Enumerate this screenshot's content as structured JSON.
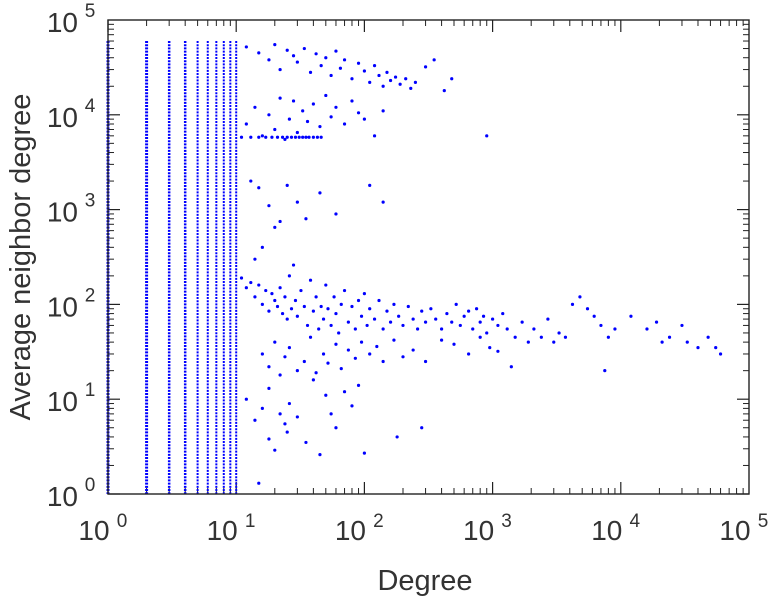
{
  "chart_data": {
    "type": "scatter",
    "title": "",
    "xlabel": "Degree",
    "ylabel": "Average neighbor degree",
    "xscale": "log",
    "yscale": "log",
    "xlim": [
      1,
      100000
    ],
    "ylim": [
      1,
      100000
    ],
    "grid": false,
    "legend": "none",
    "marker_color": "#0000ff",
    "x_ticks": [
      {
        "base": "10",
        "exp": "0"
      },
      {
        "base": "10",
        "exp": "1"
      },
      {
        "base": "10",
        "exp": "2"
      },
      {
        "base": "10",
        "exp": "3"
      },
      {
        "base": "10",
        "exp": "4"
      },
      {
        "base": "10",
        "exp": "5"
      }
    ],
    "y_ticks": [
      {
        "base": "10",
        "exp": "0"
      },
      {
        "base": "10",
        "exp": "1"
      },
      {
        "base": "10",
        "exp": "2"
      },
      {
        "base": "10",
        "exp": "3"
      },
      {
        "base": "10",
        "exp": "4"
      },
      {
        "base": "10",
        "exp": "5"
      }
    ],
    "columns_x": [
      1,
      2,
      3,
      4,
      5,
      6,
      7,
      8,
      9,
      10
    ],
    "column_ymin": 1,
    "column_ymax": 60000,
    "points": [
      [
        12,
        52000
      ],
      [
        15,
        45000
      ],
      [
        18,
        38000
      ],
      [
        20,
        55000
      ],
      [
        22,
        30000
      ],
      [
        25,
        48000
      ],
      [
        28,
        42000
      ],
      [
        30,
        36000
      ],
      [
        34,
        50000
      ],
      [
        38,
        28000
      ],
      [
        42,
        44000
      ],
      [
        46,
        33000
      ],
      [
        50,
        40000
      ],
      [
        55,
        26000
      ],
      [
        60,
        47000
      ],
      [
        65,
        31000
      ],
      [
        70,
        38000
      ],
      [
        80,
        24000
      ],
      [
        90,
        35000
      ],
      [
        100,
        29000
      ],
      [
        110,
        22000
      ],
      [
        120,
        33000
      ],
      [
        130,
        26000
      ],
      [
        140,
        20000
      ],
      [
        150,
        28000
      ],
      [
        160,
        23000
      ],
      [
        175,
        25000
      ],
      [
        190,
        21000
      ],
      [
        210,
        24000
      ],
      [
        230,
        19000
      ],
      [
        250,
        22000
      ],
      [
        300,
        32000
      ],
      [
        350,
        38000
      ],
      [
        420,
        18000
      ],
      [
        480,
        24000
      ],
      [
        12,
        8000
      ],
      [
        14,
        12000
      ],
      [
        16,
        6000
      ],
      [
        18,
        10000
      ],
      [
        20,
        7000
      ],
      [
        22,
        15000
      ],
      [
        24,
        5500
      ],
      [
        26,
        9000
      ],
      [
        28,
        14000
      ],
      [
        30,
        6500
      ],
      [
        33,
        11000
      ],
      [
        36,
        8500
      ],
      [
        40,
        13000
      ],
      [
        45,
        7500
      ],
      [
        50,
        16000
      ],
      [
        55,
        9500
      ],
      [
        60,
        12000
      ],
      [
        70,
        8000
      ],
      [
        80,
        14000
      ],
      [
        90,
        10500
      ],
      [
        100,
        9000
      ],
      [
        120,
        6000
      ],
      [
        140,
        11000
      ],
      [
        900,
        6000
      ],
      [
        11,
        5800
      ],
      [
        13,
        5800
      ],
      [
        15,
        5800
      ],
      [
        17,
        5800
      ],
      [
        19,
        5800
      ],
      [
        21,
        5800
      ],
      [
        23,
        5800
      ],
      [
        25,
        5800
      ],
      [
        27,
        5800
      ],
      [
        29,
        5800
      ],
      [
        31,
        5800
      ],
      [
        33,
        5800
      ],
      [
        35,
        5800
      ],
      [
        37,
        5800
      ],
      [
        40,
        5800
      ],
      [
        43,
        5800
      ],
      [
        46,
        5800
      ],
      [
        13,
        2000
      ],
      [
        15,
        1700
      ],
      [
        18,
        1100
      ],
      [
        22,
        750
      ],
      [
        25,
        1800
      ],
      [
        30,
        1200
      ],
      [
        35,
        800
      ],
      [
        45,
        1500
      ],
      [
        60,
        900
      ],
      [
        110,
        1800
      ],
      [
        140,
        1200
      ],
      [
        16,
        400
      ],
      [
        20,
        650
      ],
      [
        14,
        300
      ],
      [
        11,
        190
      ],
      [
        12,
        150
      ],
      [
        13,
        170
      ],
      [
        14,
        120
      ],
      [
        15,
        160
      ],
      [
        16,
        100
      ],
      [
        17,
        140
      ],
      [
        18,
        85
      ],
      [
        19,
        130
      ],
      [
        20,
        110
      ],
      [
        21,
        95
      ],
      [
        22,
        150
      ],
      [
        23,
        80
      ],
      [
        24,
        120
      ],
      [
        25,
        70
      ],
      [
        26,
        200
      ],
      [
        27,
        90
      ],
      [
        28,
        260
      ],
      [
        29,
        110
      ],
      [
        30,
        75
      ],
      [
        32,
        140
      ],
      [
        34,
        95
      ],
      [
        36,
        60
      ],
      [
        38,
        180
      ],
      [
        40,
        85
      ],
      [
        42,
        120
      ],
      [
        44,
        55
      ],
      [
        46,
        95
      ],
      [
        48,
        70
      ],
      [
        50,
        160
      ],
      [
        52,
        90
      ],
      [
        55,
        60
      ],
      [
        58,
        120
      ],
      [
        60,
        80
      ],
      [
        63,
        50
      ],
      [
        66,
        100
      ],
      [
        70,
        140
      ],
      [
        75,
        65
      ],
      [
        80,
        95
      ],
      [
        85,
        55
      ],
      [
        90,
        110
      ],
      [
        95,
        75
      ],
      [
        100,
        130
      ],
      [
        105,
        60
      ],
      [
        110,
        90
      ],
      [
        120,
        70
      ],
      [
        130,
        110
      ],
      [
        140,
        55
      ],
      [
        150,
        85
      ],
      [
        160,
        65
      ],
      [
        170,
        100
      ],
      [
        185,
        75
      ],
      [
        200,
        60
      ],
      [
        220,
        95
      ],
      [
        240,
        70
      ],
      [
        260,
        55
      ],
      [
        280,
        85
      ],
      [
        300,
        65
      ],
      [
        330,
        90
      ],
      [
        360,
        70
      ],
      [
        400,
        55
      ],
      [
        440,
        80
      ],
      [
        480,
        65
      ],
      [
        520,
        100
      ],
      [
        560,
        60
      ],
      [
        600,
        75
      ],
      [
        650,
        85
      ],
      [
        700,
        55
      ],
      [
        750,
        90
      ],
      [
        800,
        65
      ],
      [
        850,
        75
      ],
      [
        900,
        50
      ],
      [
        1000,
        70
      ],
      [
        1100,
        60
      ],
      [
        1200,
        80
      ],
      [
        1300,
        55
      ],
      [
        1500,
        45
      ],
      [
        1700,
        65
      ],
      [
        1900,
        40
      ],
      [
        2100,
        55
      ],
      [
        2400,
        45
      ],
      [
        2700,
        70
      ],
      [
        3000,
        40
      ],
      [
        3300,
        50
      ],
      [
        3700,
        45
      ],
      [
        4200,
        100
      ],
      [
        4800,
        120
      ],
      [
        5500,
        90
      ],
      [
        6200,
        75
      ],
      [
        7000,
        60
      ],
      [
        8000,
        45
      ],
      [
        9000,
        55
      ],
      [
        12000,
        75
      ],
      [
        16000,
        55
      ],
      [
        19000,
        65
      ],
      [
        21000,
        40
      ],
      [
        24000,
        45
      ],
      [
        30000,
        60
      ],
      [
        33000,
        40
      ],
      [
        40000,
        35
      ],
      [
        48000,
        45
      ],
      [
        55000,
        35
      ],
      [
        60000,
        30
      ],
      [
        1400,
        22
      ],
      [
        7500,
        20
      ],
      [
        280,
        5
      ],
      [
        100,
        2.7
      ],
      [
        180,
        4
      ],
      [
        25,
        4.5
      ],
      [
        45,
        2.6
      ],
      [
        60,
        5
      ],
      [
        35,
        3.5
      ],
      [
        15,
        1.3
      ],
      [
        18,
        3.8
      ],
      [
        20,
        2.9
      ],
      [
        12,
        10
      ],
      [
        14,
        6
      ],
      [
        16,
        8
      ],
      [
        18,
        13
      ],
      [
        22,
        7
      ],
      [
        24,
        5.5
      ],
      [
        26,
        9
      ],
      [
        30,
        6.5
      ],
      [
        40,
        16
      ],
      [
        50,
        11
      ],
      [
        55,
        7
      ],
      [
        70,
        12
      ],
      [
        80,
        8.5
      ],
      [
        90,
        14
      ],
      [
        16,
        30
      ],
      [
        18,
        22
      ],
      [
        20,
        40
      ],
      [
        22,
        18
      ],
      [
        24,
        28
      ],
      [
        26,
        35
      ],
      [
        30,
        20
      ],
      [
        34,
        25
      ],
      [
        38,
        45
      ],
      [
        42,
        19
      ],
      [
        48,
        30
      ],
      [
        52,
        24
      ],
      [
        60,
        38
      ],
      [
        66,
        21
      ],
      [
        75,
        33
      ],
      [
        85,
        27
      ],
      [
        95,
        40
      ],
      [
        110,
        30
      ],
      [
        125,
        36
      ],
      [
        140,
        25
      ],
      [
        170,
        42
      ],
      [
        200,
        28
      ],
      [
        240,
        33
      ],
      [
        300,
        25
      ],
      [
        400,
        42
      ],
      [
        500,
        38
      ],
      [
        650,
        30
      ],
      [
        800,
        45
      ],
      [
        950,
        35
      ],
      [
        1100,
        32
      ]
    ]
  }
}
